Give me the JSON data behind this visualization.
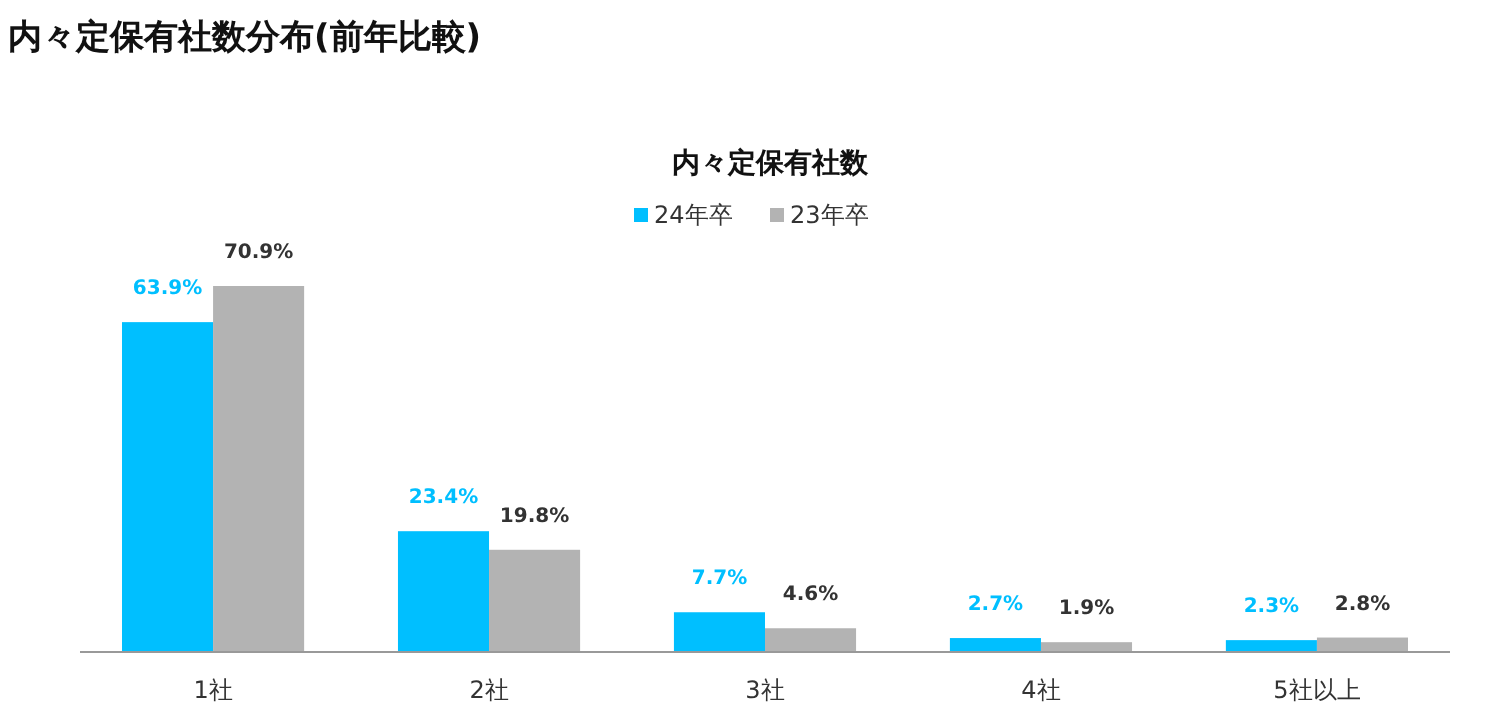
{
  "chart_data": {
    "type": "bar",
    "title": "内々定保有社数分布(前年比較)",
    "subtitle": "内々定保有社数",
    "categories": [
      "1社",
      "2社",
      "3社",
      "4社",
      "5社以上"
    ],
    "series": [
      {
        "name": "24年卒",
        "color": "#00bfff",
        "values": [
          63.9,
          23.4,
          7.7,
          2.7,
          2.3
        ],
        "value_labels": [
          "63.9%",
          "23.4%",
          "7.7%",
          "2.7%",
          "2.3%"
        ]
      },
      {
        "name": "23年卒",
        "color": "#b3b3b3",
        "values": [
          70.9,
          19.8,
          4.6,
          1.9,
          2.8
        ],
        "value_labels": [
          "70.9%",
          "19.8%",
          "4.6%",
          "1.9%",
          "2.8%"
        ]
      }
    ],
    "legend": "top"
  }
}
